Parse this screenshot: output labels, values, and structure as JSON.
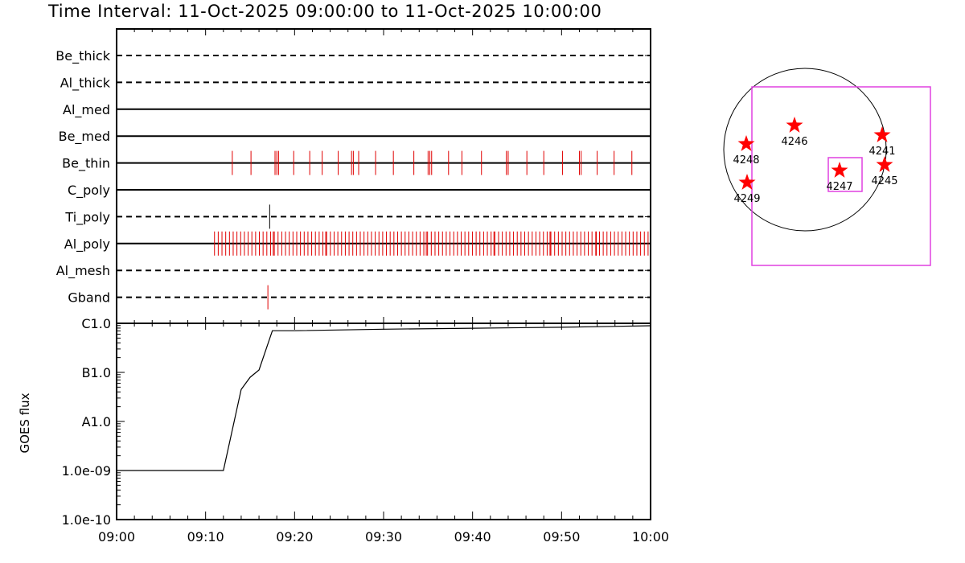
{
  "title": "Time Interval: 11-Oct-2025 09:00:00 to 11-Oct-2025 10:00:00",
  "colors": {
    "event": "#e00000",
    "box": "#e040e0",
    "star": "#ff0000",
    "axis": "#000000"
  },
  "chart_data": [
    {
      "type": "timeline",
      "x_ticks": [
        "09:00",
        "09:10",
        "09:20",
        "09:30",
        "09:40",
        "09:50",
        "10:00"
      ],
      "xlim_minutes": [
        0,
        60
      ],
      "channels": [
        {
          "name": "Be_thick",
          "style": "dashed",
          "events": []
        },
        {
          "name": "Al_thick",
          "style": "dashed",
          "events": []
        },
        {
          "name": "Al_med",
          "style": "solid",
          "events": []
        },
        {
          "name": "Be_med",
          "style": "solid",
          "events": []
        },
        {
          "name": "Be_thin",
          "style": "solid",
          "events": [
            13.0,
            15.1,
            17.8,
            18.0,
            18.2,
            19.9,
            21.7,
            23.1,
            24.9,
            26.4,
            26.6,
            27.2,
            29.1,
            31.1,
            33.4,
            35.0,
            35.2,
            35.4,
            37.3,
            38.8,
            41.0,
            43.8,
            44.0,
            46.1,
            48.0,
            50.1,
            52.0,
            52.2,
            54.0,
            55.9,
            57.9
          ]
        },
        {
          "name": "C_poly",
          "style": "solid",
          "events": []
        },
        {
          "name": "Ti_poly",
          "style": "dashed",
          "events": [
            17.2
          ]
        },
        {
          "name": "Al_poly",
          "style": "solid",
          "events_regular": {
            "start": 11.0,
            "end": 60.0,
            "step": 0.42
          },
          "events_extra": [
            17.6,
            23.5,
            34.8,
            42.4,
            48.7,
            53.9
          ]
        },
        {
          "name": "Al_mesh",
          "style": "dashed",
          "events": []
        },
        {
          "name": "Gband",
          "style": "dashed",
          "events": [
            17.0
          ]
        }
      ]
    },
    {
      "type": "line",
      "ylabel": "GOES flux",
      "y_ticks": [
        "C1.0",
        "B1.0",
        "A1.0",
        "1.0e-09",
        "1.0e-10"
      ],
      "ylim_log10": [
        -10,
        -6
      ],
      "scale": "log",
      "series": [
        {
          "x": [
            0,
            12.0,
            14.0,
            15.0,
            16.0,
            17.5,
            20,
            30,
            40,
            50,
            60
          ],
          "y_log10": [
            -9.0,
            -9.0,
            -7.35,
            -7.1,
            -6.95,
            -6.15,
            -6.15,
            -6.12,
            -6.1,
            -6.08,
            -6.05
          ]
        }
      ]
    },
    {
      "type": "scatter",
      "regions": [
        {
          "label": "4246"
        },
        {
          "label": "4241"
        },
        {
          "label": "4248"
        },
        {
          "label": "4245"
        },
        {
          "label": "4247"
        },
        {
          "label": "4249"
        }
      ]
    }
  ]
}
